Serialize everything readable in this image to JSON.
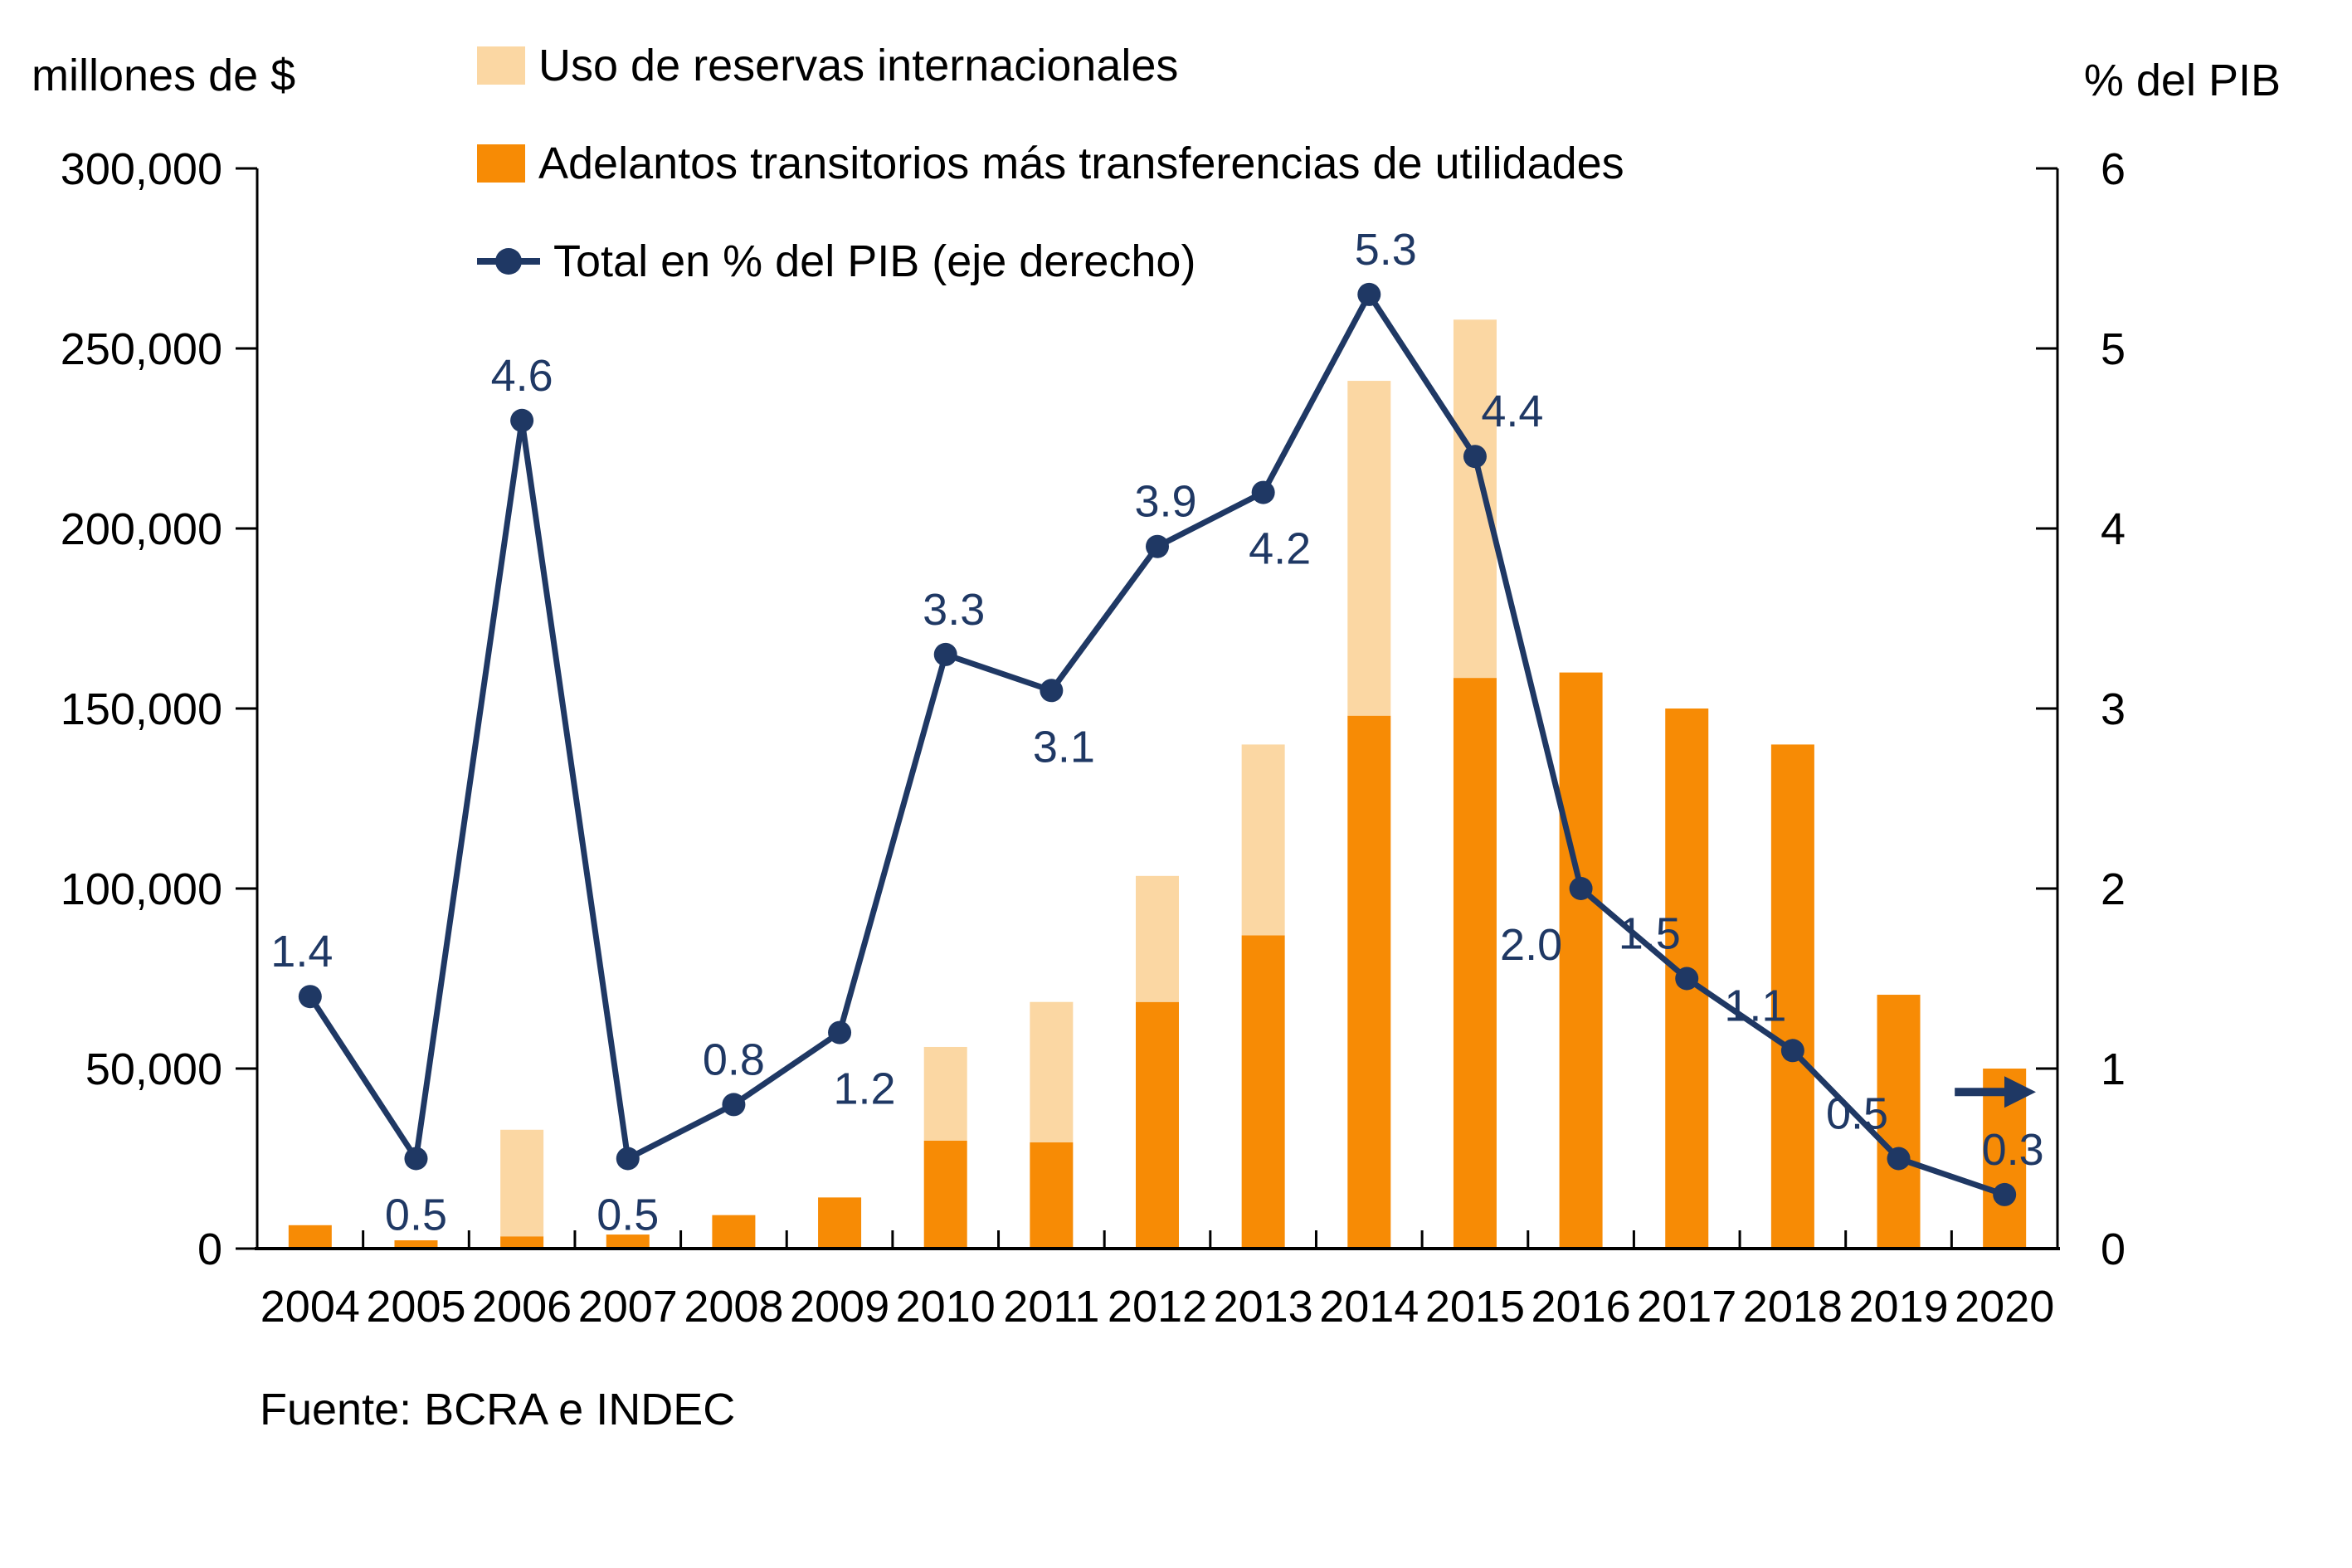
{
  "figure": {
    "left_axis_title": "millones de $",
    "right_axis_title": "% del PIB",
    "source_note": "Fuente: BCRA e INDEC"
  },
  "chart_data": {
    "type": "bar",
    "subtype": "stacked-bars-with-line-on-secondary-axis",
    "title": "",
    "xlabel": "",
    "ylabel_left": "millones de $",
    "ylabel_right": "% del PIB",
    "grid": false,
    "legend_position": "top-left",
    "categories": [
      "2004",
      "2005",
      "2006",
      "2007",
      "2008",
      "2009",
      "2010",
      "2011",
      "2012",
      "2013",
      "2014",
      "2015",
      "2016",
      "2017",
      "2018",
      "2019",
      "2020"
    ],
    "legend": [
      {
        "label": "Uso de reservas internacionales",
        "swatch": "square",
        "color": "#FBD7A3"
      },
      {
        "label": "Adelantos transitorios más transferencias de utilidades",
        "swatch": "square",
        "color": "#F78B05"
      },
      {
        "label": "Total en % del PIB (eje derecho)",
        "swatch": "line-marker",
        "color": "#1F3864"
      }
    ],
    "bar_series": [
      {
        "name": "Adelantos transitorios más transferencias de utilidades",
        "stack_position": "bottom",
        "color": "#F78B05",
        "values": [
          6500,
          2300,
          3400,
          3900,
          9300,
          14200,
          30000,
          29500,
          68500,
          87000,
          148000,
          158500,
          160000,
          150000,
          140000,
          70500,
          50000
        ]
      },
      {
        "name": "Uso de reservas internacionales",
        "stack_position": "top",
        "color": "#FBD7A3",
        "values": [
          0,
          0,
          29600,
          0,
          0,
          0,
          26000,
          39000,
          35000,
          53000,
          93000,
          99500,
          0,
          0,
          0,
          0,
          0
        ]
      }
    ],
    "line_series": {
      "name": "Total en % del PIB (eje derecho)",
      "axis": "right",
      "color": "#1F3864",
      "values": [
        1.4,
        0.5,
        4.6,
        0.5,
        0.8,
        1.2,
        3.3,
        3.1,
        3.9,
        4.2,
        5.3,
        4.4,
        2.0,
        1.5,
        1.1,
        0.5,
        0.3
      ],
      "point_labels": [
        "1.4",
        "0.5",
        "4.6",
        "0.5",
        "0.8",
        "1.2",
        "3.3",
        "3.1",
        "3.9",
        "4.2",
        "5.3",
        "4.4",
        "2.0",
        "1.5",
        "1.1",
        "0.5",
        "0.3"
      ],
      "label_side": [
        "above",
        "below",
        "above",
        "below",
        "above",
        "below",
        "above",
        "below",
        "above",
        "below",
        "above",
        "above",
        "below",
        "above",
        "above",
        "above",
        "above"
      ],
      "label_dx": [
        -10,
        0,
        0,
        0,
        0,
        30,
        10,
        15,
        10,
        20,
        20,
        45,
        -60,
        -45,
        -45,
        -50,
        10
      ]
    },
    "left_axis": {
      "min": 0,
      "max": 300000,
      "step": 50000,
      "tick_labels": [
        "0",
        "50,000",
        "100,000",
        "150,000",
        "200,000",
        "250,000",
        "300,000"
      ]
    },
    "right_axis": {
      "min": 0,
      "max": 6,
      "step": 1,
      "tick_labels": [
        "0",
        "1",
        "2",
        "3",
        "4",
        "5",
        "6"
      ]
    },
    "annotations": {
      "arrow": {
        "description": "horizontal arrow pointing right toward the right axis near the 2020 bar",
        "y_value_right_axis": 0.87
      }
    }
  }
}
